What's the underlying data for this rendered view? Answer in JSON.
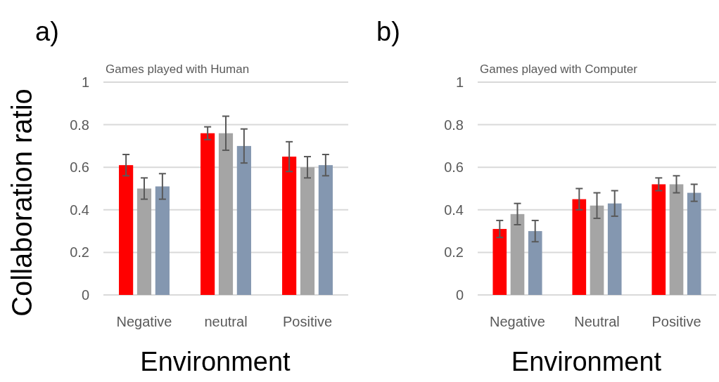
{
  "chart_data": [
    {
      "type": "bar",
      "title": "Games played with Human",
      "ylabel": "Collaboration ratio",
      "xlabel": "Environment",
      "annotations": [
        "a)"
      ],
      "categories": [
        "Negative",
        "neutral",
        "Positive"
      ],
      "series": [
        {
          "color": "#ff0000",
          "values": [
            0.61,
            0.76,
            0.65
          ],
          "errors": [
            0.05,
            0.03,
            0.07
          ]
        },
        {
          "color": "#a5a5a5",
          "values": [
            0.5,
            0.76,
            0.6
          ],
          "errors": [
            0.05,
            0.08,
            0.05
          ]
        },
        {
          "color": "#8497b0",
          "values": [
            0.51,
            0.7,
            0.61
          ],
          "errors": [
            0.06,
            0.08,
            0.05
          ]
        }
      ],
      "ylim": [
        0,
        1
      ],
      "yticks": [
        0,
        0.2,
        0.4,
        0.6,
        0.8,
        1
      ],
      "grid": "y"
    },
    {
      "type": "bar",
      "title": "Games played with Computer",
      "xlabel": "Environment",
      "annotations": [
        "b)"
      ],
      "categories": [
        "Negative",
        "Neutral",
        "Positive"
      ],
      "series": [
        {
          "color": "#ff0000",
          "values": [
            0.31,
            0.45,
            0.52
          ],
          "errors": [
            0.04,
            0.05,
            0.03
          ]
        },
        {
          "color": "#a5a5a5",
          "values": [
            0.38,
            0.42,
            0.52
          ],
          "errors": [
            0.05,
            0.06,
            0.04
          ]
        },
        {
          "color": "#8497b0",
          "values": [
            0.3,
            0.43,
            0.48
          ],
          "errors": [
            0.05,
            0.06,
            0.04
          ]
        }
      ],
      "ylim": [
        0,
        1
      ],
      "yticks": [
        0,
        0.2,
        0.4,
        0.6,
        0.8,
        1
      ],
      "grid": "y"
    }
  ]
}
